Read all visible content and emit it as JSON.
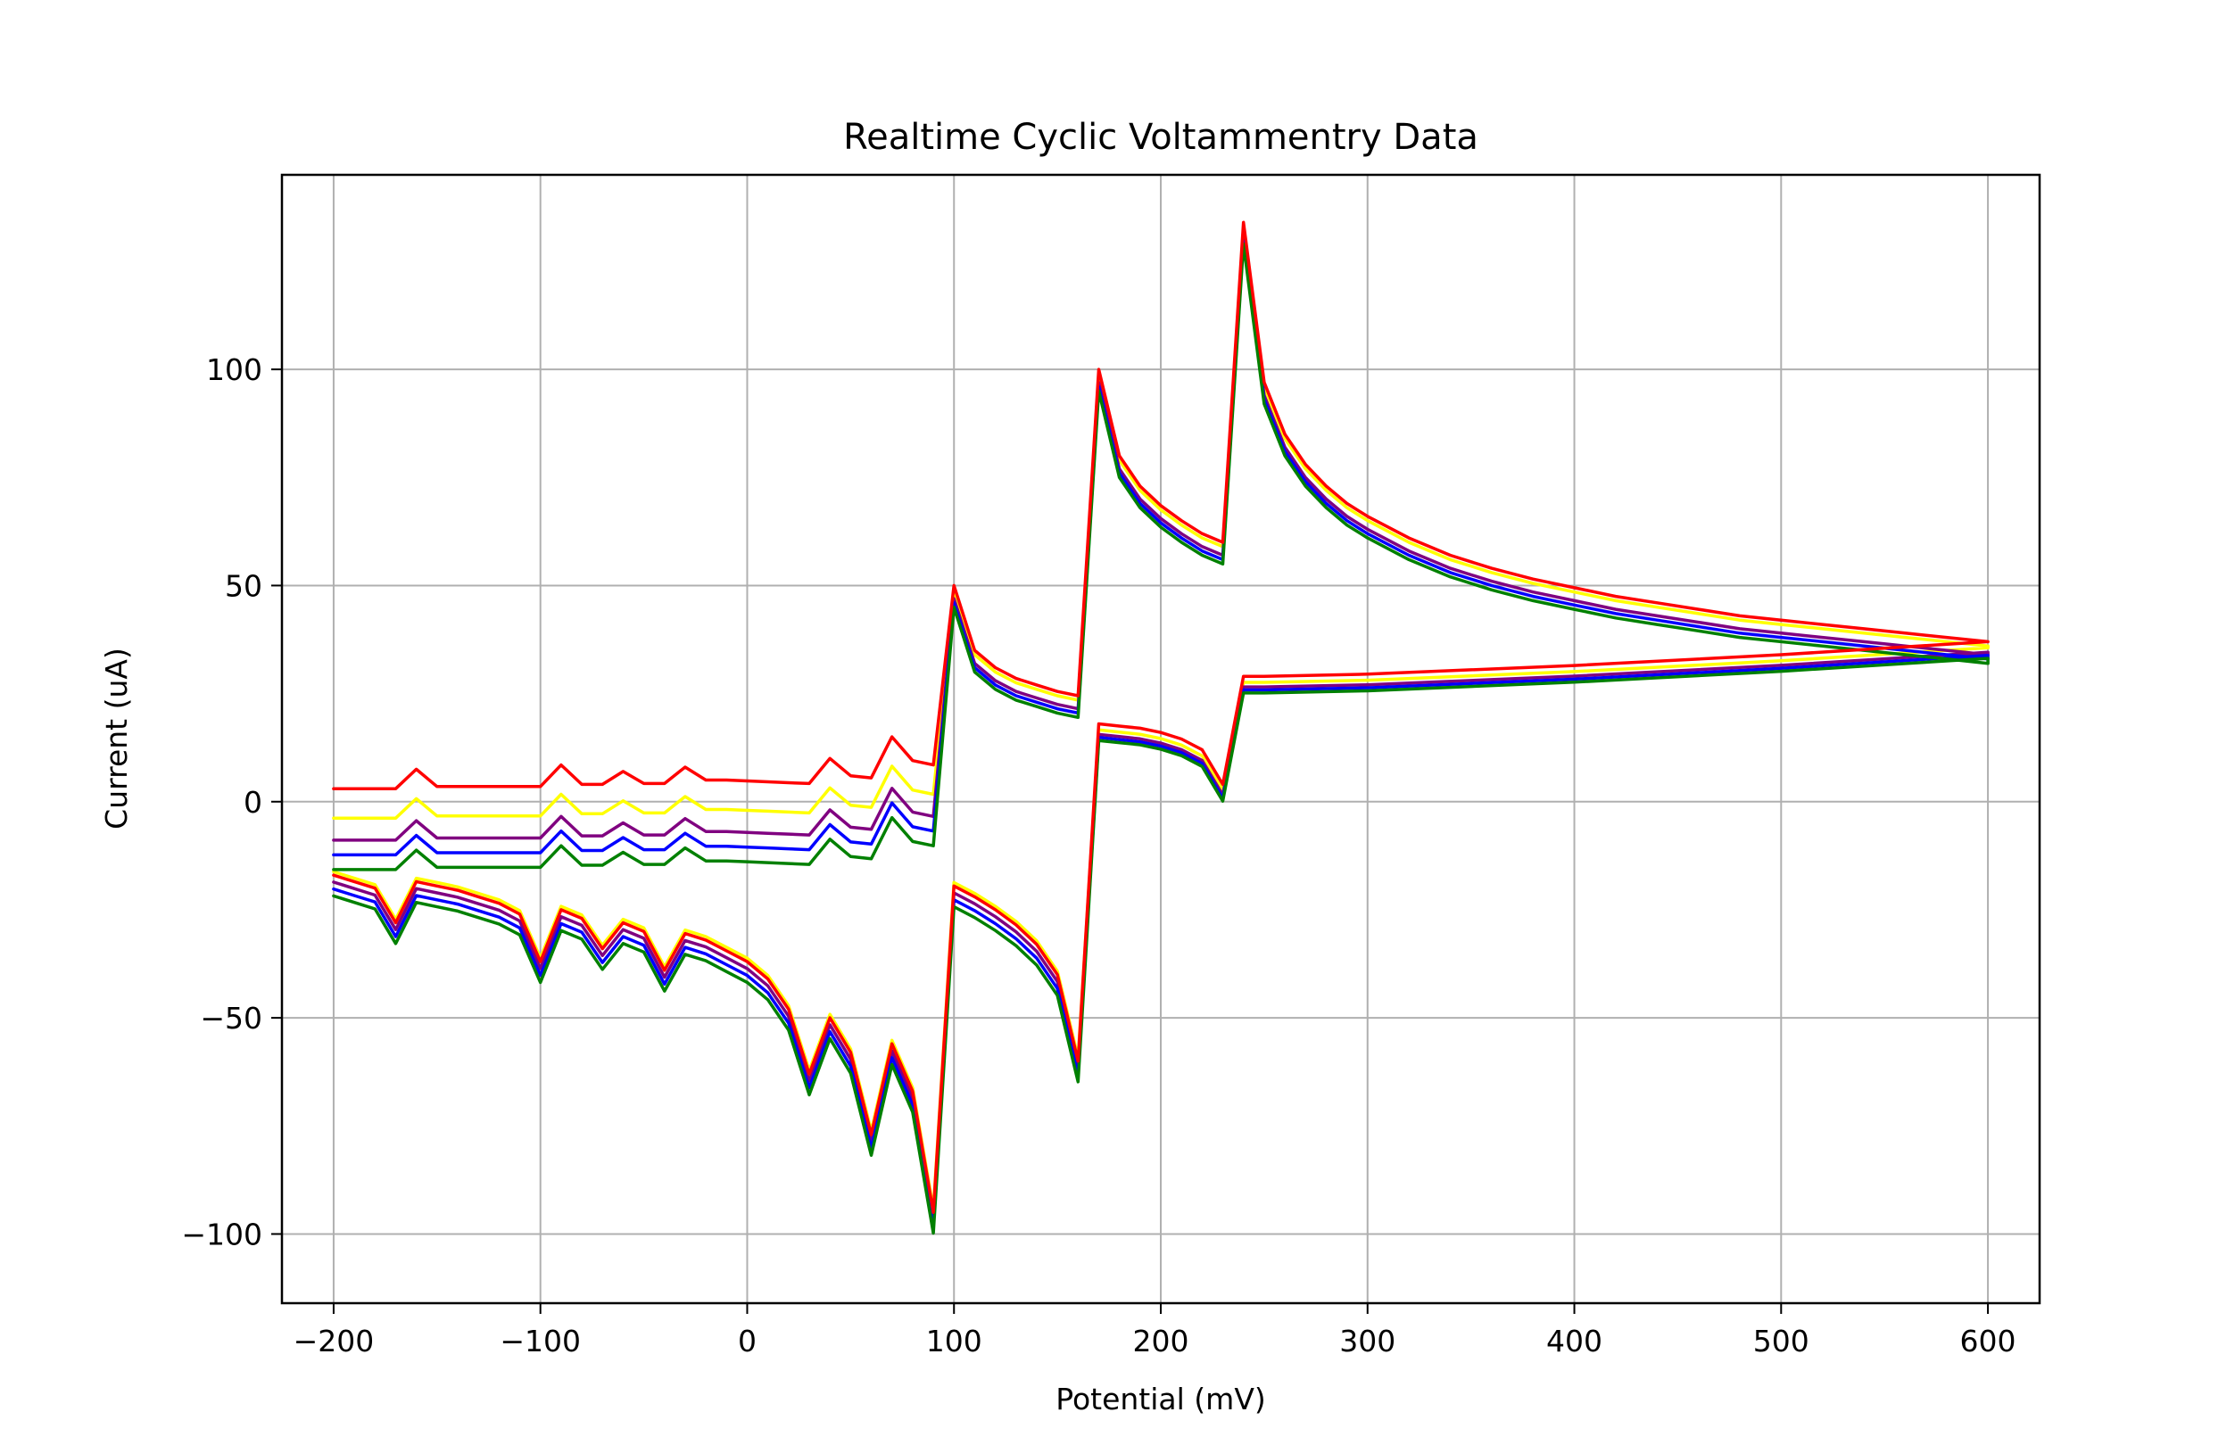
{
  "chart_data": {
    "type": "line",
    "title": "Realtime Cyclic Voltammentry Data",
    "xlabel": "Potential (mV)",
    "ylabel": "Current (uA)",
    "xlim": [
      -225,
      625
    ],
    "ylim": [
      -116,
      145
    ],
    "xticks": [
      -200,
      -100,
      0,
      100,
      200,
      300,
      400,
      500,
      600
    ],
    "yticks": [
      -100,
      -50,
      0,
      50,
      100
    ],
    "xtick_labels": [
      "−200",
      "−100",
      "0",
      "100",
      "200",
      "300",
      "400",
      "500",
      "600"
    ],
    "ytick_labels": [
      "−100",
      "−50",
      "0",
      "50",
      "100"
    ],
    "grid": true,
    "legend": "none",
    "series": [
      {
        "color": "#ffff00",
        "offset": -2,
        "anodic_shift": -1,
        "forward_shift": 2
      },
      {
        "color": "#800080",
        "offset": -3.5,
        "anodic_shift": -3,
        "forward_shift": 0.5
      },
      {
        "color": "#0000ff",
        "offset": -4.5,
        "anodic_shift": -4,
        "forward_shift": -0.5
      },
      {
        "color": "#008000",
        "offset": -5.5,
        "anodic_shift": -5,
        "forward_shift": -1.5
      },
      {
        "color": "#ff0000",
        "offset": 0,
        "anodic_shift": 0,
        "forward_shift": 0
      }
    ],
    "base_forward": [
      [
        -200,
        -17
      ],
      [
        -190,
        -18.5
      ],
      [
        -180,
        -20
      ],
      [
        -170,
        -28
      ],
      [
        -160,
        -18.5
      ],
      [
        -150,
        -19.5
      ],
      [
        -140,
        -20.5
      ],
      [
        -130,
        -22
      ],
      [
        -120,
        -23.5
      ],
      [
        -110,
        -26
      ],
      [
        -100,
        -37
      ],
      [
        -90,
        -25
      ],
      [
        -80,
        -27
      ],
      [
        -70,
        -34
      ],
      [
        -60,
        -28
      ],
      [
        -50,
        -30
      ],
      [
        -40,
        -39
      ],
      [
        -30,
        -30.5
      ],
      [
        -20,
        -32
      ],
      [
        -10,
        -34.5
      ],
      [
        0,
        -37
      ],
      [
        10,
        -41
      ],
      [
        20,
        -48
      ],
      [
        30,
        -63
      ],
      [
        40,
        -50
      ],
      [
        50,
        -58
      ],
      [
        60,
        -77
      ],
      [
        70,
        -56
      ],
      [
        80,
        -67
      ],
      [
        90,
        -95
      ],
      [
        100,
        -19.5
      ],
      [
        110,
        -22
      ],
      [
        120,
        -25
      ],
      [
        130,
        -28.5
      ],
      [
        140,
        -33
      ],
      [
        150,
        -40
      ],
      [
        160,
        -60
      ],
      [
        170,
        18
      ],
      [
        180,
        17.5
      ],
      [
        190,
        17
      ],
      [
        200,
        16
      ],
      [
        210,
        14.5
      ],
      [
        220,
        12
      ],
      [
        230,
        4
      ],
      [
        240,
        29
      ],
      [
        250,
        29
      ],
      [
        300,
        29.5
      ],
      [
        400,
        31.5
      ],
      [
        500,
        34
      ],
      [
        600,
        37
      ]
    ],
    "base_reverse": [
      [
        600,
        37
      ],
      [
        580,
        38
      ],
      [
        560,
        39
      ],
      [
        540,
        40
      ],
      [
        520,
        41
      ],
      [
        500,
        42
      ],
      [
        480,
        43
      ],
      [
        460,
        44.5
      ],
      [
        440,
        46
      ],
      [
        420,
        47.5
      ],
      [
        400,
        49.5
      ],
      [
        380,
        51.5
      ],
      [
        360,
        54
      ],
      [
        340,
        57
      ],
      [
        320,
        61
      ],
      [
        300,
        66
      ],
      [
        290,
        69
      ],
      [
        280,
        73
      ],
      [
        270,
        78
      ],
      [
        260,
        85
      ],
      [
        250,
        97
      ],
      [
        240,
        134
      ],
      [
        230,
        60
      ],
      [
        220,
        62
      ],
      [
        210,
        65
      ],
      [
        200,
        68.5
      ],
      [
        190,
        73
      ],
      [
        180,
        80
      ],
      [
        170,
        100
      ],
      [
        160,
        24.5
      ],
      [
        150,
        25.5
      ],
      [
        140,
        27
      ],
      [
        130,
        28.5
      ],
      [
        120,
        31
      ],
      [
        110,
        35
      ],
      [
        100,
        50
      ],
      [
        90,
        8.5
      ],
      [
        80,
        9.5
      ],
      [
        70,
        15
      ],
      [
        60,
        5.5
      ],
      [
        50,
        6
      ],
      [
        40,
        10
      ],
      [
        30,
        4.2
      ],
      [
        20,
        4.4
      ],
      [
        10,
        4.6
      ],
      [
        0,
        4.8
      ],
      [
        -10,
        5
      ],
      [
        -20,
        5
      ],
      [
        -30,
        8
      ],
      [
        -40,
        4.2
      ],
      [
        -50,
        4.2
      ],
      [
        -60,
        7
      ],
      [
        -70,
        4
      ],
      [
        -80,
        4
      ],
      [
        -90,
        8.5
      ],
      [
        -100,
        3.5
      ],
      [
        -110,
        3.5
      ],
      [
        -120,
        3.5
      ],
      [
        -130,
        3.5
      ],
      [
        -140,
        3.5
      ],
      [
        -150,
        3.5
      ],
      [
        -160,
        7.5
      ],
      [
        -170,
        3
      ],
      [
        -180,
        3
      ],
      [
        -190,
        3
      ],
      [
        -200,
        3
      ]
    ]
  }
}
